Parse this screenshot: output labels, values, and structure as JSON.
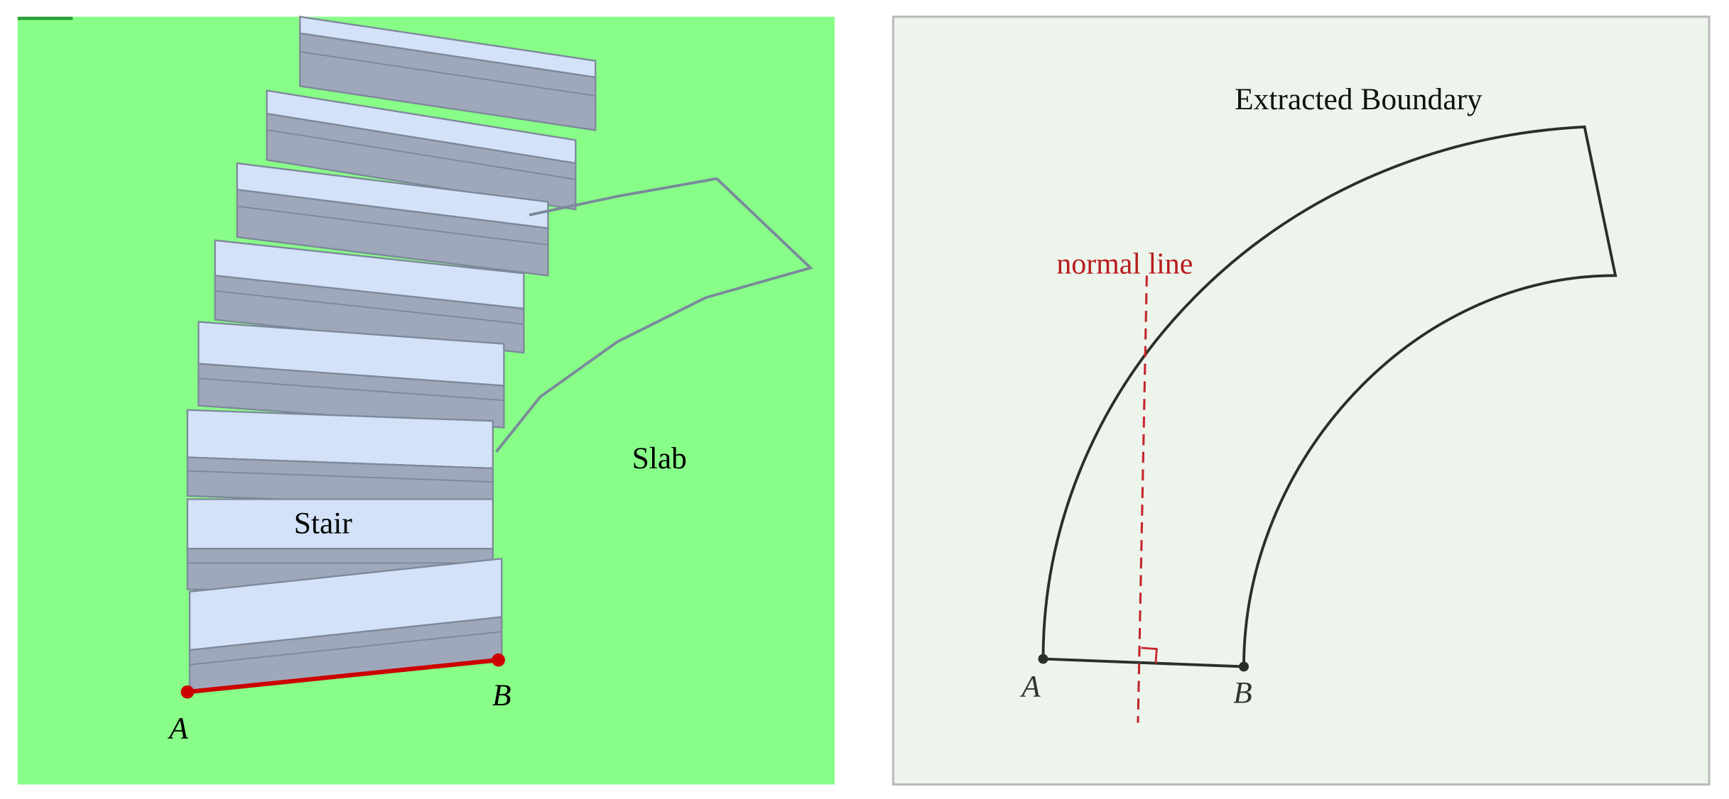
{
  "left_panel": {
    "stair_label": "Stair",
    "slab_label": "Slab",
    "point_a": "A",
    "point_b": "B"
  },
  "right_panel": {
    "title": "Extracted Boundary",
    "normal_line_label": "normal line",
    "point_a": "A",
    "point_b": "B"
  }
}
